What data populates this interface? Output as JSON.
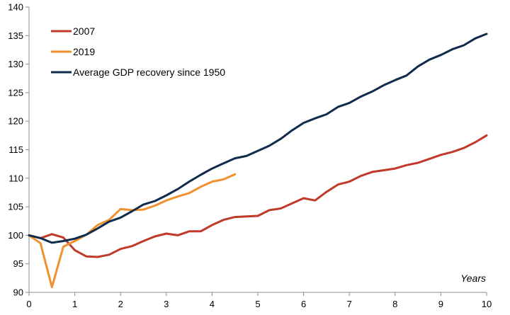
{
  "chart_data": {
    "type": "line",
    "title": "",
    "xlabel": "Years",
    "ylabel": "",
    "xlim": [
      0,
      10
    ],
    "ylim": [
      90,
      140
    ],
    "xticks": [
      0,
      1,
      2,
      3,
      4,
      5,
      6,
      7,
      8,
      9,
      10
    ],
    "yticks": [
      90,
      95,
      100,
      105,
      110,
      115,
      120,
      125,
      130,
      135,
      140
    ],
    "grid": false,
    "legend_position": "top-left",
    "series": [
      {
        "name": "2007",
        "color": "#c0392b",
        "x": [
          0,
          0.25,
          0.5,
          0.75,
          1,
          1.25,
          1.5,
          1.75,
          2,
          2.25,
          2.5,
          2.75,
          3,
          3.25,
          3.5,
          3.75,
          4,
          4.25,
          4.5,
          4.75,
          5,
          5.25,
          5.5,
          5.75,
          6,
          6.25,
          6.5,
          6.75,
          7,
          7.25,
          7.5,
          7.75,
          8,
          8.25,
          8.5,
          8.75,
          9,
          9.25,
          9.5,
          9.75,
          10
        ],
        "y": [
          100,
          99.5,
          100.2,
          99.6,
          97.4,
          96.3,
          96.2,
          96.6,
          97.6,
          98.1,
          99.0,
          99.8,
          100.3,
          100.0,
          100.7,
          100.7,
          101.8,
          102.7,
          103.2,
          103.3,
          103.4,
          104.4,
          104.7,
          105.6,
          106.5,
          106.1,
          107.6,
          108.9,
          109.4,
          110.4,
          111.1,
          111.4,
          111.7,
          112.3,
          112.7,
          113.4,
          114.1,
          114.6,
          115.3,
          116.3,
          117.5
        ]
      },
      {
        "name": "2019",
        "color": "#f0902f",
        "x": [
          0,
          0.25,
          0.5,
          0.75,
          1,
          1.25,
          1.5,
          1.75,
          2,
          2.25,
          2.5,
          2.75,
          3,
          3.25,
          3.5,
          3.75,
          4,
          4.25,
          4.5
        ],
        "y": [
          100,
          98.6,
          90.9,
          98.0,
          99.0,
          100.1,
          101.8,
          102.7,
          104.6,
          104.4,
          104.5,
          105.2,
          106.1,
          106.8,
          107.4,
          108.5,
          109.4,
          109.8,
          110.7
        ]
      },
      {
        "name": "Average GDP recovery since 1950",
        "color": "#0f2c4e",
        "x": [
          0,
          0.25,
          0.5,
          0.75,
          1,
          1.25,
          1.5,
          1.75,
          2,
          2.25,
          2.5,
          2.75,
          3,
          3.25,
          3.5,
          3.75,
          4,
          4.25,
          4.5,
          4.75,
          5,
          5.25,
          5.5,
          5.75,
          6,
          6.25,
          6.5,
          6.75,
          7,
          7.25,
          7.5,
          7.75,
          8,
          8.25,
          8.5,
          8.75,
          9,
          9.25,
          9.5,
          9.75,
          10
        ],
        "y": [
          100,
          99.5,
          98.7,
          99.0,
          99.4,
          100.1,
          101.2,
          102.4,
          103.1,
          104.2,
          105.4,
          106.0,
          107.0,
          108.1,
          109.4,
          110.6,
          111.7,
          112.6,
          113.5,
          113.9,
          114.8,
          115.7,
          116.9,
          118.4,
          119.7,
          120.5,
          121.2,
          122.5,
          123.2,
          124.3,
          125.2,
          126.3,
          127.2,
          128.0,
          129.6,
          130.8,
          131.6,
          132.6,
          133.3,
          134.5,
          135.3
        ]
      }
    ]
  }
}
